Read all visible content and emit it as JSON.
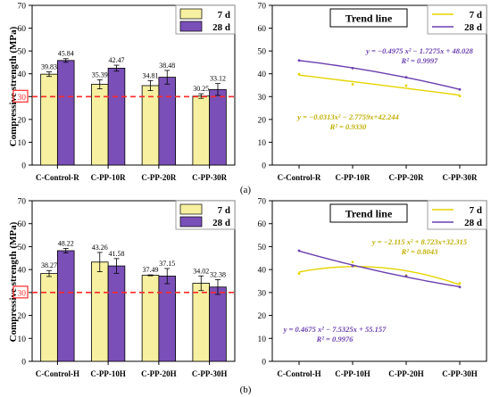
{
  "figure": {
    "panel_a_label": "(a)",
    "panel_b_label": "(b)",
    "ylabel": "Compressive strength (MPa)",
    "reference_line_value": 30,
    "reference_line_label": "30"
  },
  "colors": {
    "d7": "#f6f0a0",
    "d28": "#7a4fb8",
    "line7": "#e6d400",
    "line28": "#6a3fb0",
    "eq7": "#bfae00",
    "eq28": "#6a3fb0",
    "ref": "#ff2a2a"
  },
  "chart_data": [
    {
      "type": "bar",
      "panel": "a",
      "categories": [
        "C-Control-R",
        "C-PP-10R",
        "C-PP-20R",
        "C-PP-30R"
      ],
      "ylim": [
        0,
        70
      ],
      "yticks": [
        0,
        10,
        20,
        30,
        40,
        50,
        60,
        70
      ],
      "legend_placement": "top-right",
      "series": [
        {
          "name": "7 d",
          "values": [
            39.83,
            35.39,
            34.81,
            30.25
          ],
          "errors": [
            1.0,
            2.0,
            2.2,
            1.0
          ]
        },
        {
          "name": "28 d",
          "values": [
            45.84,
            42.47,
            38.48,
            33.12
          ],
          "errors": [
            0.8,
            1.3,
            3.0,
            2.6
          ]
        }
      ],
      "data_labels": {
        "7 d": [
          "39.83",
          "35.39",
          "34.81",
          "30.25"
        ],
        "28 d": [
          "45.84",
          "42.47",
          "38.48",
          "33.12"
        ]
      }
    },
    {
      "type": "line",
      "panel": "a",
      "title": "Trend line",
      "categories": [
        "C-Control-R",
        "C-PP-10R",
        "C-PP-20R",
        "C-PP-30R"
      ],
      "ylim": [
        0,
        70
      ],
      "yticks": [
        0,
        10,
        20,
        30,
        40,
        50,
        60,
        70
      ],
      "legend_placement": "top-right",
      "series": [
        {
          "name": "7 d",
          "values": [
            39.83,
            35.39,
            34.81,
            30.25
          ],
          "fit": [
            -0.0313,
            -2.7759,
            42.244
          ]
        },
        {
          "name": "28 d",
          "values": [
            45.84,
            42.47,
            38.48,
            33.12
          ],
          "fit": [
            -0.4975,
            -1.7275,
            48.028
          ]
        }
      ],
      "annotations": [
        {
          "series": "28 d",
          "equation": "y = −0.4975 x² − 1.7275x + 48.028",
          "r2": "R² = 0.9997"
        },
        {
          "series": "7 d",
          "equation": "y = −0.0313x² − 2.7759x+42.244",
          "r2": "R² = 0.9330"
        }
      ]
    },
    {
      "type": "bar",
      "panel": "b",
      "categories": [
        "C-Control-H",
        "C-PP-10H",
        "C-PP-20H",
        "C-PP-30H"
      ],
      "ylim": [
        0,
        70
      ],
      "yticks": [
        0,
        10,
        20,
        30,
        40,
        50,
        60,
        70
      ],
      "legend_placement": "top-right",
      "series": [
        {
          "name": "7 d",
          "values": [
            38.27,
            43.26,
            37.49,
            34.02
          ],
          "errors": [
            1.3,
            4.2,
            0.2,
            3.2
          ]
        },
        {
          "name": "28 d",
          "values": [
            48.22,
            41.58,
            37.15,
            32.38
          ],
          "errors": [
            1.0,
            3.2,
            3.3,
            3.2
          ]
        }
      ],
      "data_labels": {
        "7 d": [
          "38.27",
          "43.26",
          "37.49",
          "34.02"
        ],
        "28 d": [
          "48.22",
          "41.58",
          "37.15",
          "32.38"
        ]
      }
    },
    {
      "type": "line",
      "panel": "b",
      "title": "Trend line",
      "categories": [
        "C-Control-H",
        "C-PP-10H",
        "C-PP-20H",
        "C-PP-30H"
      ],
      "ylim": [
        0,
        70
      ],
      "yticks": [
        0,
        10,
        20,
        30,
        40,
        50,
        60,
        70
      ],
      "legend_placement": "top-right",
      "series": [
        {
          "name": "7 d",
          "values": [
            38.27,
            43.26,
            37.49,
            34.02
          ],
          "fit": [
            -2.115,
            8.723,
            32.315
          ]
        },
        {
          "name": "28 d",
          "values": [
            48.22,
            41.58,
            37.15,
            32.38
          ],
          "fit": [
            0.4675,
            -7.5325,
            55.157
          ]
        }
      ],
      "annotations": [
        {
          "series": "7 d",
          "equation": "y = −2.115 x² + 8.723x+32.315",
          "r2": "R² = 0.8043"
        },
        {
          "series": "28 d",
          "equation": "y = 0.4675 x² − 7.5325x + 55.157",
          "r2": "R² = 0.9976"
        }
      ]
    }
  ]
}
